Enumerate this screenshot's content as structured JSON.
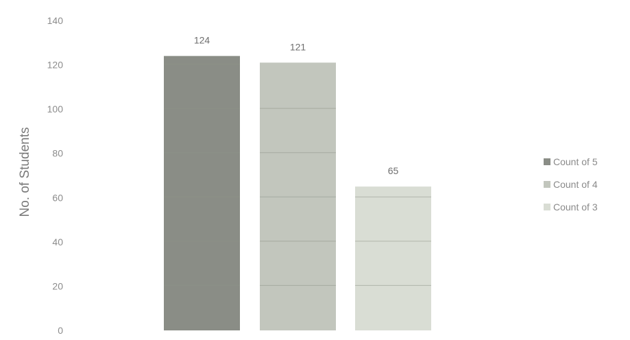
{
  "chart_data": {
    "type": "bar",
    "ylabel": "No. of Students",
    "ylim": [
      0,
      140
    ],
    "ytick_step": 20,
    "y_ticks": [
      "0",
      "20",
      "40",
      "60",
      "80",
      "100",
      "120",
      "140"
    ],
    "grid": true,
    "legend_position": "right",
    "data_labels": true,
    "series": [
      {
        "name": "Count of 5",
        "values": [
          124
        ],
        "color": "#8a8d86"
      },
      {
        "name": "Count of 4",
        "values": [
          121
        ],
        "color": "#c2c6bd"
      },
      {
        "name": "Count of 3",
        "values": [
          65
        ],
        "color": "#d9ddd4"
      }
    ]
  },
  "colors": {
    "axis_text": "#8c8c8c",
    "ylabel_text": "#7a7a7a",
    "data_label_text": "#6e6e6e",
    "legend_text": "#8a8a8a",
    "gridline": "#8f9489"
  }
}
